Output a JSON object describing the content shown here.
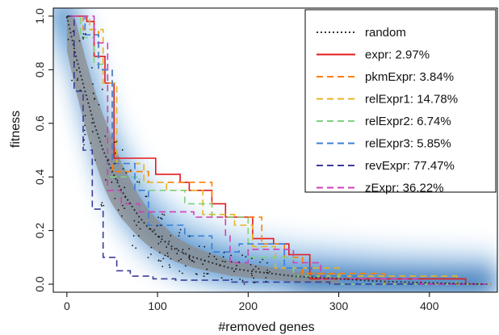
{
  "chart_data": {
    "type": "line",
    "title": "",
    "xlabel": "#removed genes",
    "ylabel": "fitness",
    "xlim": [
      -15,
      475
    ],
    "ylim": [
      -0.03,
      1.03
    ],
    "xticks": [
      0,
      100,
      200,
      300,
      400
    ],
    "yticks": [
      0.0,
      0.2,
      0.4,
      0.6,
      0.8,
      1.0
    ],
    "xtick_labels": [
      "0",
      "100",
      "200",
      "300",
      "400"
    ],
    "ytick_labels": [
      "0.0",
      "0.2",
      "0.4",
      "0.6",
      "0.8",
      "1.0"
    ],
    "legend_position": "top-right",
    "background": "blue density shading of random removals",
    "series": [
      {
        "name": "random",
        "style": "dotted",
        "color": "#333333",
        "x": [
          0,
          10,
          20,
          30,
          40,
          50,
          60,
          70,
          80,
          90,
          100,
          120,
          140,
          160,
          180,
          200,
          250,
          300,
          350,
          400,
          460
        ],
        "y": [
          1.0,
          0.85,
          0.72,
          0.6,
          0.5,
          0.42,
          0.35,
          0.3,
          0.25,
          0.21,
          0.18,
          0.13,
          0.1,
          0.08,
          0.06,
          0.05,
          0.03,
          0.02,
          0.01,
          0.005,
          0.0
        ]
      },
      {
        "name": "expr: 2.97%",
        "style": "solid",
        "color": "#e41a1c",
        "x": [
          5,
          22,
          22,
          30,
          30,
          42,
          42,
          52,
          52,
          98,
          98,
          125,
          125,
          135,
          135,
          160,
          160,
          175,
          175,
          205,
          205,
          228,
          228,
          245,
          245,
          268,
          268,
          440,
          440,
          468
        ],
        "y": [
          1.0,
          1.0,
          0.98,
          0.98,
          0.85,
          0.85,
          0.75,
          0.75,
          0.47,
          0.47,
          0.41,
          0.41,
          0.38,
          0.38,
          0.35,
          0.35,
          0.3,
          0.3,
          0.25,
          0.25,
          0.17,
          0.17,
          0.15,
          0.15,
          0.11,
          0.11,
          0.02,
          0.02,
          0.0,
          0.0
        ]
      },
      {
        "name": "pkmExpr: 3.84%",
        "style": "dashed",
        "color": "#ff7f00",
        "x": [
          5,
          18,
          18,
          35,
          35,
          50,
          50,
          90,
          90,
          160,
          160,
          215,
          215,
          240,
          240,
          260,
          260,
          350,
          350,
          468
        ],
        "y": [
          1.0,
          1.0,
          0.95,
          0.95,
          0.8,
          0.8,
          0.42,
          0.42,
          0.38,
          0.38,
          0.25,
          0.25,
          0.15,
          0.15,
          0.1,
          0.1,
          0.04,
          0.04,
          0.0,
          0.0
        ]
      },
      {
        "name": "relExpr1: 14.78%",
        "style": "dashed",
        "color": "#e6b422",
        "x": [
          5,
          25,
          25,
          40,
          40,
          55,
          55,
          85,
          85,
          110,
          110,
          150,
          150,
          185,
          185,
          205,
          205,
          230,
          230,
          300,
          300,
          430,
          430,
          468
        ],
        "y": [
          1.0,
          1.0,
          0.95,
          0.95,
          0.75,
          0.75,
          0.45,
          0.45,
          0.38,
          0.38,
          0.35,
          0.35,
          0.26,
          0.26,
          0.22,
          0.22,
          0.14,
          0.14,
          0.06,
          0.06,
          0.03,
          0.03,
          0.0,
          0.0
        ]
      },
      {
        "name": "relExpr2: 6.74%",
        "style": "dashed",
        "color": "#7ed27e",
        "x": [
          5,
          15,
          15,
          30,
          30,
          45,
          45,
          80,
          80,
          130,
          130,
          160,
          160,
          200,
          200,
          250,
          250,
          300,
          300,
          468
        ],
        "y": [
          1.0,
          1.0,
          0.92,
          0.92,
          0.82,
          0.82,
          0.4,
          0.4,
          0.35,
          0.35,
          0.3,
          0.3,
          0.25,
          0.25,
          0.1,
          0.1,
          0.03,
          0.03,
          0.0,
          0.0
        ]
      },
      {
        "name": "relExpr3: 5.85%",
        "style": "dashed",
        "color": "#3b7fd9",
        "x": [
          5,
          20,
          20,
          35,
          35,
          50,
          50,
          75,
          75,
          90,
          90,
          130,
          130,
          160,
          160,
          190,
          190,
          240,
          240,
          270,
          270,
          320,
          320,
          468
        ],
        "y": [
          1.0,
          1.0,
          0.93,
          0.93,
          0.8,
          0.8,
          0.45,
          0.45,
          0.35,
          0.35,
          0.22,
          0.22,
          0.18,
          0.18,
          0.12,
          0.12,
          0.15,
          0.15,
          0.06,
          0.06,
          0.03,
          0.03,
          0.0,
          0.0
        ]
      },
      {
        "name": "revExpr: 77.47%",
        "style": "dashed",
        "color": "#3b3b9a",
        "x": [
          0,
          8,
          8,
          18,
          18,
          28,
          28,
          40,
          40,
          55,
          55,
          70,
          70,
          95,
          95,
          120,
          120,
          180,
          180,
          290,
          290,
          468
        ],
        "y": [
          1.0,
          1.0,
          0.72,
          0.72,
          0.5,
          0.5,
          0.28,
          0.28,
          0.1,
          0.1,
          0.05,
          0.05,
          0.03,
          0.03,
          0.02,
          0.02,
          0.015,
          0.015,
          0.008,
          0.008,
          0.0,
          0.0
        ]
      },
      {
        "name": "zExpr: 36.22%",
        "style": "dashed",
        "color": "#d13fb6",
        "x": [
          5,
          30,
          30,
          45,
          45,
          60,
          60,
          80,
          80,
          140,
          140,
          175,
          175,
          180,
          180,
          200,
          200,
          250,
          250,
          280,
          280,
          390,
          390,
          468
        ],
        "y": [
          1.0,
          1.0,
          0.9,
          0.9,
          0.35,
          0.35,
          0.3,
          0.3,
          0.27,
          0.27,
          0.25,
          0.25,
          0.18,
          0.18,
          0.08,
          0.08,
          0.13,
          0.13,
          0.08,
          0.08,
          0.02,
          0.02,
          0.0,
          0.0
        ]
      }
    ]
  }
}
